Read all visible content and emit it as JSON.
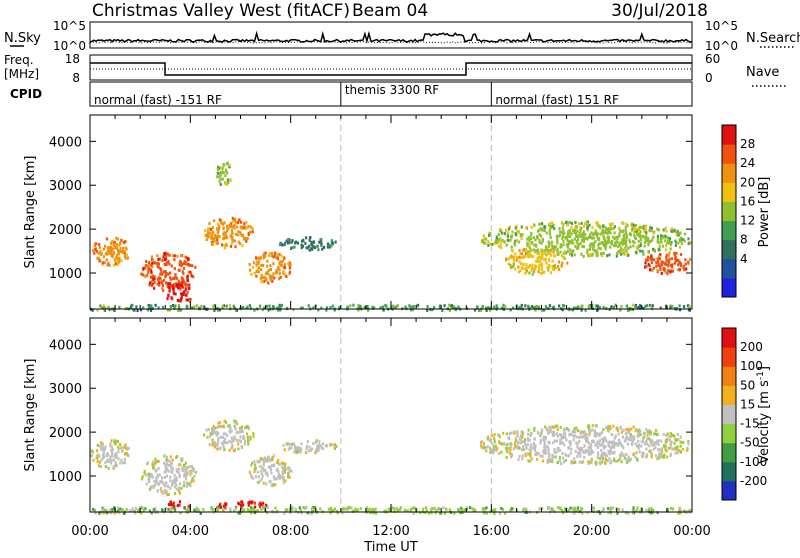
{
  "header": {
    "station": "Christmas Valley West (fitACF)",
    "beam": "Beam 04",
    "date": "30/Jul/2018"
  },
  "strips": {
    "nsky_label": "N.Sky",
    "nsearch_label": "N.Search",
    "nsky_ticks": [
      "10^5",
      "10^0"
    ],
    "nsky_right_ticks": [
      "10^5",
      "10^0"
    ],
    "freq_label_top": "Freq.",
    "freq_label_bottom": "[MHz]",
    "freq_ticks": [
      "18",
      "8"
    ],
    "nave_ticks": [
      "60",
      "0"
    ],
    "nave_label": "Nave",
    "cpid_label": "CPID",
    "cpid_segments": [
      {
        "label": "normal (fast) -151 RF",
        "start_h": 0,
        "end_h": 10
      },
      {
        "label": "themis 3300 RF",
        "start_h": 10,
        "end_h": 16
      },
      {
        "label": "normal (fast) 151 RF",
        "start_h": 16,
        "end_h": 24
      }
    ]
  },
  "x_axis": {
    "title": "Time UT",
    "ticks": [
      "00:00",
      "04:00",
      "08:00",
      "12:00",
      "16:00",
      "20:00",
      "00:00"
    ]
  },
  "chart_data": [
    {
      "type": "heatmap",
      "name": "power",
      "ylabel": "Slant Range [km]",
      "yticks": [
        "4000",
        "3000",
        "2000",
        "1000"
      ],
      "ylim": [
        180,
        4600
      ],
      "xlim": [
        0,
        24
      ],
      "colorbar_label": "Power [dB]",
      "colorbar_ticks": [
        "28",
        "24",
        "20",
        "16",
        "12",
        "8",
        "4"
      ],
      "colors": [
        "#2020e0",
        "#2050a0",
        "#307060",
        "#40a050",
        "#90c030",
        "#f0c010",
        "#f09010",
        "#f05010",
        "#e01010"
      ],
      "regions": [
        {
          "t0": 0.0,
          "t1": 1.6,
          "r0": 1200,
          "r1": 1850,
          "level": 6
        },
        {
          "t0": 2.0,
          "t1": 4.2,
          "r0": 600,
          "r1": 1500,
          "level": 7
        },
        {
          "t0": 3.0,
          "t1": 4.0,
          "r0": 380,
          "r1": 800,
          "level": 8
        },
        {
          "t0": 4.5,
          "t1": 6.5,
          "r0": 1600,
          "r1": 2300,
          "level": 6
        },
        {
          "t0": 6.3,
          "t1": 8.0,
          "r0": 800,
          "r1": 1500,
          "level": 6
        },
        {
          "t0": 5.0,
          "t1": 5.6,
          "r0": 3000,
          "r1": 3600,
          "level": 4
        },
        {
          "t0": 7.5,
          "t1": 9.8,
          "r0": 1550,
          "r1": 1850,
          "level": 2
        },
        {
          "t0": 15.5,
          "t1": 24.0,
          "r0": 1400,
          "r1": 2200,
          "level": 4
        },
        {
          "t0": 16.5,
          "t1": 19.0,
          "r0": 1000,
          "r1": 1600,
          "level": 5
        },
        {
          "t0": 22.0,
          "t1": 24.0,
          "r0": 1000,
          "r1": 1500,
          "level": 7
        },
        {
          "t0": 0.0,
          "t1": 24.0,
          "r0": 180,
          "r1": 300,
          "level": 3
        }
      ]
    },
    {
      "type": "heatmap",
      "name": "velocity",
      "ylabel": "Slant Range [km]",
      "yticks": [
        "4000",
        "3000",
        "2000",
        "1000"
      ],
      "ylim": [
        180,
        4600
      ],
      "xlim": [
        0,
        24
      ],
      "colorbar_label": "Velocity [m s",
      "colorbar_label_sup": "-1",
      "colorbar_label_end": "]",
      "colorbar_ticks": [
        "200",
        "100",
        "50",
        "15",
        "-15",
        "-50",
        "-100",
        "-200"
      ],
      "colors": [
        "#2030c0",
        "#207060",
        "#40a040",
        "#90d040",
        "#c0c0c0",
        "#f0b020",
        "#f08010",
        "#f04010",
        "#e01010"
      ],
      "regions": [
        {
          "t0": 0.0,
          "t1": 1.6,
          "r0": 1200,
          "r1": 1850,
          "level": 4
        },
        {
          "t0": 2.0,
          "t1": 4.2,
          "r0": 600,
          "r1": 1500,
          "level": 4
        },
        {
          "t0": 4.5,
          "t1": 6.5,
          "r0": 1600,
          "r1": 2300,
          "level": 4
        },
        {
          "t0": 6.3,
          "t1": 8.0,
          "r0": 800,
          "r1": 1500,
          "level": 4
        },
        {
          "t0": 7.5,
          "t1": 9.8,
          "r0": 1550,
          "r1": 1850,
          "level": 4
        },
        {
          "t0": 15.5,
          "t1": 24.0,
          "r0": 1300,
          "r1": 2200,
          "level": 4
        },
        {
          "t0": 3.0,
          "t1": 4.0,
          "r0": 300,
          "r1": 450,
          "level": 8
        },
        {
          "t0": 5.0,
          "t1": 7.0,
          "r0": 300,
          "r1": 450,
          "level": 8
        },
        {
          "t0": 0.0,
          "t1": 24.0,
          "r0": 180,
          "r1": 320,
          "level": 3
        }
      ]
    }
  ]
}
